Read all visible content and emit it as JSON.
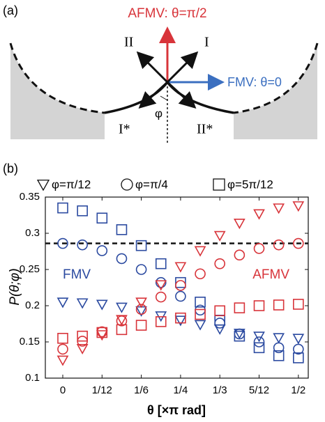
{
  "diagram": {
    "label": "(a)",
    "afmv": "AFMV: θ=π/2",
    "fmv": "FMV: θ=0",
    "arrow_1": "I",
    "arrow_2": "II",
    "arrow_3": "I*",
    "arrow_4": "II*",
    "angle": "φ"
  },
  "chart_data": {
    "type": "scatter",
    "panel_label": "(b)",
    "xlabel": "θ [×π rad]",
    "ylabel": "P(θ;φ)",
    "x": [
      0,
      0.04167,
      0.08333,
      0.125,
      0.16667,
      0.20833,
      0.25,
      0.29167,
      0.33333,
      0.375,
      0.41667,
      0.45833,
      0.5
    ],
    "legend": [
      {
        "marker": "triangle",
        "label": "φ=π/12"
      },
      {
        "marker": "circle",
        "label": "φ=π/4"
      },
      {
        "marker": "square",
        "label": "φ=5π/12"
      }
    ],
    "series": [
      {
        "marker": "square",
        "color": "#2b4aa0",
        "values": [
          0.335,
          0.331,
          0.321,
          0.305,
          0.283,
          0.258,
          0.232,
          0.205,
          0.18,
          0.158,
          0.142,
          0.131,
          0.128
        ]
      },
      {
        "marker": "circle",
        "color": "#2b4aa0",
        "values": [
          0.286,
          0.284,
          0.276,
          0.265,
          0.25,
          0.232,
          0.213,
          0.194,
          0.176,
          0.161,
          0.15,
          0.142,
          0.14
        ]
      },
      {
        "marker": "triangle",
        "color": "#2b4aa0",
        "values": [
          0.205,
          0.204,
          0.202,
          0.198,
          0.193,
          0.186,
          0.18,
          0.174,
          0.168,
          0.162,
          0.158,
          0.156,
          0.155
        ]
      },
      {
        "marker": "triangle",
        "color": "#d8343a",
        "values": [
          0.125,
          0.141,
          0.16,
          0.181,
          0.205,
          0.229,
          0.254,
          0.276,
          0.297,
          0.314,
          0.327,
          0.335,
          0.338
        ]
      },
      {
        "marker": "circle",
        "color": "#d8343a",
        "values": [
          0.14,
          0.151,
          0.164,
          0.179,
          0.195,
          0.212,
          0.228,
          0.244,
          0.258,
          0.27,
          0.279,
          0.284,
          0.286
        ]
      },
      {
        "marker": "square",
        "color": "#d8343a",
        "values": [
          0.155,
          0.158,
          0.163,
          0.167,
          0.173,
          0.178,
          0.183,
          0.188,
          0.193,
          0.197,
          0.2,
          0.201,
          0.202
        ]
      }
    ],
    "hline": 0.286,
    "annotations": [
      {
        "text": "FMV",
        "color": "#2b4aa0"
      },
      {
        "text": "AFMV",
        "color": "#d8343a"
      }
    ],
    "xlim": [
      -0.037,
      0.521
    ],
    "ylim": [
      0.1,
      0.35
    ],
    "xticks": [
      0,
      {
        "value": 0.08333,
        "label": "1/12"
      },
      {
        "value": 0.16667,
        "label": "1/6"
      },
      {
        "value": 0.25,
        "label": "1/4"
      },
      {
        "value": 0.33333,
        "label": "1/3"
      },
      {
        "value": 0.41667,
        "label": "5/12"
      },
      {
        "value": 0.5,
        "label": "1/2"
      }
    ],
    "yticks": [
      0.1,
      0.15,
      0.2,
      0.25,
      0.3,
      0.35
    ]
  }
}
